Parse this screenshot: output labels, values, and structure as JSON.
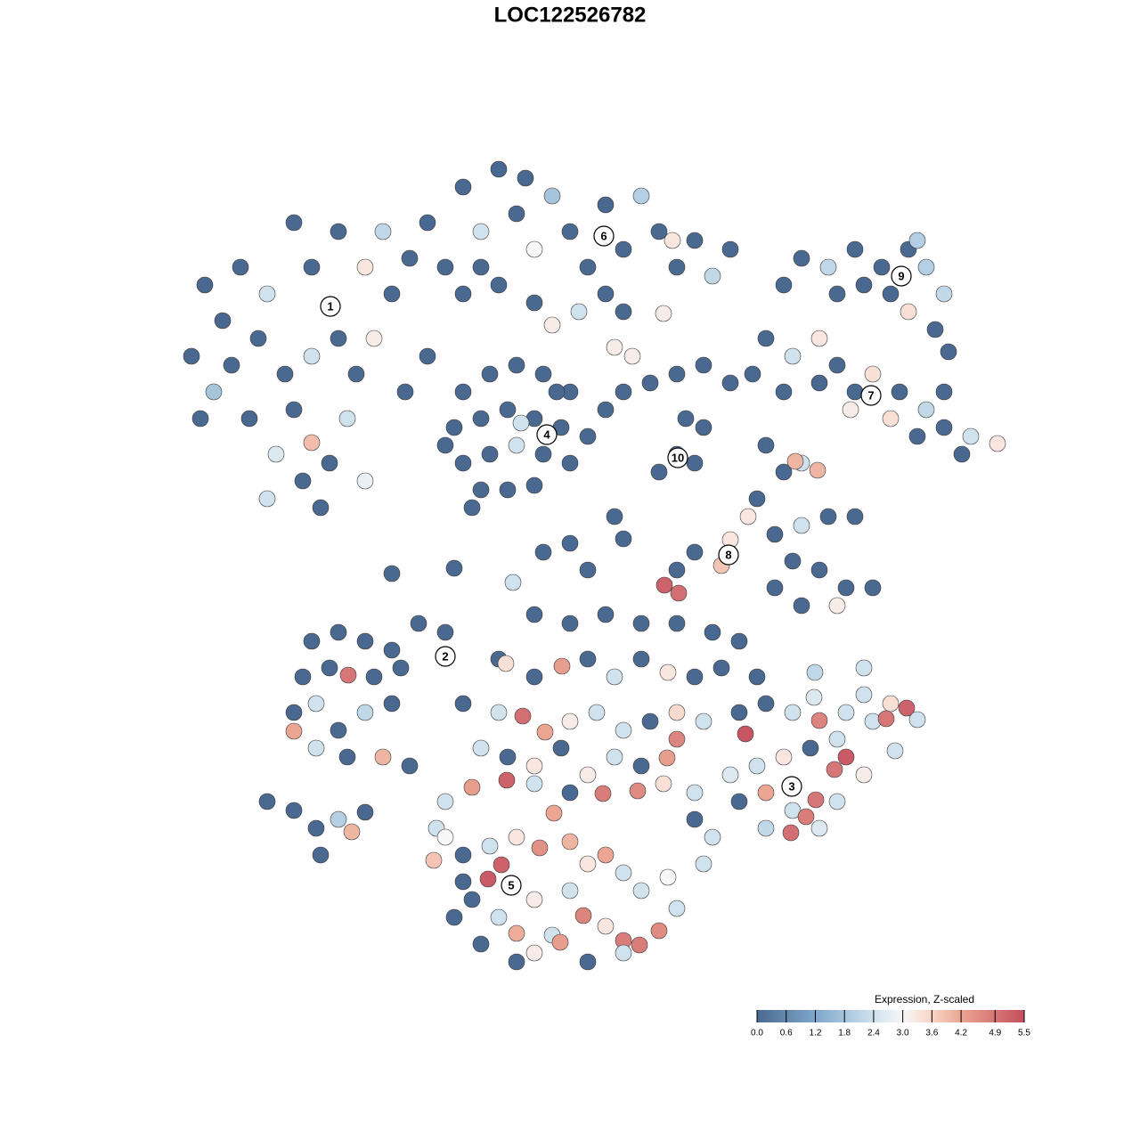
{
  "chart_data": {
    "type": "scatter",
    "title": "LOC122526782",
    "xlim": [
      0,
      1280
    ],
    "ylim": [
      1280,
      0
    ],
    "x": [
      230,
      250,
      215,
      240,
      270,
      300,
      290,
      320,
      280,
      310,
      340,
      360,
      330,
      350,
      380,
      400,
      390,
      410,
      370,
      350,
      380,
      410,
      330,
      260,
      300,
      420,
      350,
      225,
      440,
      460,
      480,
      500,
      520,
      540,
      560,
      580,
      600,
      620,
      640,
      660,
      680,
      700,
      720,
      740,
      760,
      780,
      800,
      820,
      520,
      560,
      600,
      650,
      700,
      745,
      620,
      480,
      455,
      540,
      590,
      755,
      680,
      430,
      520,
      550,
      580,
      610,
      640,
      510,
      540,
      570,
      600,
      630,
      660,
      520,
      550,
      580,
      610,
      640,
      540,
      570,
      600,
      530,
      585,
      625,
      500,
      700,
      730,
      760,
      790,
      820,
      770,
      790,
      760,
      740,
      780,
      690,
      710,
      680,
      880,
      900,
      930,
      960,
      990,
      1020,
      1040,
      1060,
      1000,
      970,
      940,
      1020,
      1050,
      1065,
      1030,
      860,
      890,
      920,
      940,
      960,
      980,
      1010,
      1040,
      1060,
      1090,
      1120,
      1080,
      1030,
      1000,
      920,
      880,
      845,
      955,
      1060,
      860,
      880,
      900,
      893,
      918,
      850,
      840,
      870,
      900,
      930,
      960,
      890,
      920,
      950,
      980,
      900,
      940,
      820,
      810,
      780,
      760,
      746,
      762,
      870,
      440,
      510,
      576,
      610,
      640,
      700,
      690,
      660,
      350,
      380,
      410,
      440,
      470,
      500,
      340,
      370,
      391,
      420,
      450,
      330,
      355,
      380,
      410,
      440,
      330,
      355,
      390,
      430,
      460,
      300,
      330,
      355,
      380,
      395,
      360,
      410,
      600,
      640,
      680,
      720,
      760,
      800,
      830,
      560,
      568,
      600,
      631,
      660,
      690,
      720,
      750,
      780,
      810,
      520,
      560,
      587,
      612,
      640,
      670,
      700,
      730,
      760,
      790,
      540,
      570,
      600,
      630,
      660,
      690,
      720,
      749,
      760,
      530,
      569,
      600,
      640,
      677,
      716,
      745,
      780,
      500,
      490,
      830,
      850,
      860,
      890,
      914,
      920,
      950,
      980,
      1000,
      1018,
      995,
      970,
      940,
      910,
      880,
      850,
      820,
      837,
      830,
      860,
      890,
      905,
      916,
      937,
      950,
      970,
      940,
      920,
      888,
      860,
      800,
      780,
      790,
      1030,
      1005,
      970,
      915,
      500,
      487,
      520,
      550,
      563,
      548,
      580,
      606,
      622,
      640,
      660,
      680,
      700,
      530,
      560,
      580,
      600,
      620,
      629,
      655,
      680,
      700,
      718,
      740,
      760,
      750,
      720,
      640,
      600,
      510,
      540,
      580,
      660,
      700,
      520
    ],
    "y": [
      320,
      360,
      400,
      440,
      300,
      330,
      380,
      420,
      470,
      510,
      540,
      570,
      460,
      400,
      380,
      420,
      470,
      540,
      520,
      300,
      260,
      300,
      250,
      410,
      560,
      380,
      497,
      470,
      330,
      290,
      250,
      300,
      210,
      260,
      190,
      240,
      280,
      220,
      260,
      300,
      230,
      280,
      220,
      260,
      300,
      270,
      310,
      280,
      330,
      320,
      340,
      350,
      350,
      352,
      365,
      400,
      440,
      300,
      200,
      270,
      330,
      260,
      440,
      420,
      410,
      420,
      440,
      480,
      470,
      460,
      470,
      480,
      490,
      520,
      510,
      500,
      510,
      520,
      550,
      550,
      545,
      570,
      475,
      440,
      500,
      440,
      430,
      420,
      410,
      430,
      470,
      480,
      510,
      530,
      520,
      390,
      400,
      460,
      320,
      290,
      300,
      280,
      300,
      280,
      300,
      330,
      330,
      320,
      330,
      350,
      370,
      395,
      270,
      380,
      400,
      380,
      410,
      440,
      420,
      440,
      460,
      480,
      490,
      498,
      510,
      490,
      470,
      430,
      440,
      420,
      460,
      440,
      500,
      530,
      520,
      518,
      528,
      560,
      580,
      600,
      590,
      580,
      580,
      630,
      640,
      660,
      660,
      680,
      680,
      606,
      635,
      620,
      640,
      657,
      666,
      660,
      644,
      638,
      654,
      620,
      610,
      605,
      580,
      640,
      720,
      710,
      720,
      730,
      700,
      710,
      760,
      750,
      758,
      760,
      750,
      800,
      790,
      820,
      800,
      790,
      821,
      840,
      850,
      850,
      860,
      900,
      910,
      930,
      920,
      934,
      960,
      912,
      690,
      700,
      690,
      700,
      700,
      710,
      720,
      740,
      745,
      760,
      748,
      740,
      760,
      740,
      755,
      760,
      750,
      790,
      800,
      804,
      822,
      810,
      800,
      820,
      810,
      800,
      810,
      840,
      850,
      860,
      840,
      870,
      850,
      860,
      851,
      830,
      884,
      876,
      880,
      890,
      891,
      888,
      880,
      890,
      900,
      930,
      800,
      760,
      790,
      800,
      783,
      809,
      800,
      810,
      790,
      795,
      807,
      780,
      830,
      840,
      850,
      860,
      870,
      824,
      900,
      890,
      910,
      917,
      898,
      864,
      850,
      870,
      900,
      930,
      935,
      930,
      940,
      920,
      970,
      808,
      843,
      750,
      755,
      940,
      966,
      960,
      950,
      971,
      987,
      940,
      952,
      913,
      945,
      970,
      960,
      980,
      1010,
      1030,
      1048,
      1070,
      1050,
      1058,
      1028,
      1040,
      1056,
      1061,
      1045,
      1020,
      985,
      1000,
      1000,
      1010,
      1030,
      1060,
      1080,
      1080,
      1070,
      990
    ],
    "values": [
      0,
      0,
      0,
      1.8,
      0,
      2.4,
      0,
      0,
      0,
      2.6,
      0,
      0,
      0,
      2.4,
      0,
      0,
      2.4,
      2.8,
      0,
      0,
      0,
      3.3,
      0,
      0,
      2.4,
      3.2,
      3.9,
      0,
      0,
      0,
      0,
      0,
      0,
      2.4,
      0,
      0,
      3.0,
      1.8,
      0,
      0,
      0,
      0,
      2.0,
      0,
      0,
      0,
      2.2,
      0,
      0,
      0,
      0,
      2.4,
      0,
      3.2,
      3.2,
      0,
      0,
      0,
      0,
      3.3,
      0,
      2.2,
      0,
      0,
      0,
      0,
      0,
      0,
      0,
      0,
      0,
      0,
      0,
      0,
      0,
      2.4,
      0,
      0,
      0,
      0,
      0,
      0,
      2.4,
      0,
      0,
      0,
      0,
      0,
      0,
      0,
      0,
      0,
      0,
      0,
      0,
      3.2,
      3.2,
      0,
      0,
      0,
      2.2,
      0,
      0,
      0,
      2.0,
      2.2,
      0,
      0,
      0,
      3.4,
      0,
      0,
      2.0,
      0,
      2.4,
      3.3,
      0,
      0,
      3.4,
      0,
      2.2,
      0,
      2.4,
      3.3,
      0,
      0,
      3.4,
      0,
      0,
      0,
      3.2,
      0,
      0,
      0,
      2.4,
      4.0,
      4.0,
      0,
      3.3,
      0,
      2.4,
      0,
      0,
      0,
      0,
      0,
      0,
      0,
      3.2,
      3.3,
      3.8,
      0,
      0,
      5.2,
      5.0,
      0,
      0,
      0,
      2.4,
      0,
      0,
      0,
      0,
      0,
      0,
      0,
      0,
      0,
      0,
      0,
      0,
      0,
      4.9,
      0,
      0,
      0,
      2.4,
      0,
      2.2,
      0,
      4.2,
      2.4,
      0,
      4.0,
      0,
      0,
      0,
      0,
      2.0,
      4.0,
      0,
      0,
      0,
      0,
      0,
      0,
      0,
      0,
      0,
      0,
      3.4,
      0,
      4.3,
      0,
      2.4,
      0,
      3.3,
      0,
      0,
      0,
      2.4,
      5.0,
      4.2,
      3.2,
      2.4,
      2.4,
      0,
      3.5,
      2.4,
      2.4,
      0,
      3.3,
      0,
      3.2,
      2.4,
      0,
      4.3,
      4.7,
      4.3,
      5.2,
      2.4,
      0,
      4.8,
      4.6,
      3.4,
      2.4,
      2.4,
      2.4,
      0,
      0,
      0,
      2.4,
      2.6,
      4.7,
      2.4,
      2.4,
      3.4,
      5.2,
      4.9,
      2.4,
      2.4,
      0,
      3.3,
      2.4,
      2.6,
      5.4,
      0,
      4.2,
      2.4,
      4.8,
      4.9,
      4.9,
      5.3,
      3.2,
      2.4,
      2.6,
      5.0,
      2.2,
      2.4,
      0,
      2.4,
      2.4,
      2.4,
      2.4,
      2.2,
      3.0,
      3.8,
      0,
      2.4,
      5.2,
      5.3,
      3.3,
      4.5,
      4.2,
      4.0,
      3.3,
      4.2,
      2.4,
      0,
      2.4,
      4.1,
      3.2,
      2.4,
      4.3,
      4.7,
      3.3,
      4.8,
      4.8,
      4.6,
      2.4,
      3.0,
      2.4,
      2.4,
      3.2,
      0,
      0,
      0,
      0,
      2.4,
      0
    ],
    "clusters": [
      {
        "label": "1",
        "x": 371,
        "y": 344
      },
      {
        "label": "2",
        "x": 500,
        "y": 737
      },
      {
        "label": "3",
        "x": 889,
        "y": 883
      },
      {
        "label": "4",
        "x": 614,
        "y": 488
      },
      {
        "label": "5",
        "x": 574,
        "y": 994
      },
      {
        "label": "6",
        "x": 678,
        "y": 265
      },
      {
        "label": "7",
        "x": 978,
        "y": 444
      },
      {
        "label": "8",
        "x": 818,
        "y": 623
      },
      {
        "label": "9",
        "x": 1012,
        "y": 310
      },
      {
        "label": "10",
        "x": 761,
        "y": 514
      }
    ],
    "colorbar": {
      "title": "Expression, Z-scaled",
      "lim": [
        0,
        5.5
      ],
      "ticks": [
        {
          "value": 0,
          "label": "0.0"
        },
        0.6,
        1.2,
        1.8,
        2.4,
        {
          "value": 3,
          "label": "3.0"
        },
        3.6,
        4.2,
        4.9,
        5.5
      ],
      "colorscale": [
        [
          0,
          "#4a6990"
        ],
        [
          1.2,
          "#7da7cc"
        ],
        [
          2.4,
          "#cfe2ee"
        ],
        [
          3,
          "#f7f7f7"
        ],
        [
          3.6,
          "#f8d5c6"
        ],
        [
          4.2,
          "#eba592"
        ],
        [
          5.5,
          "#c44e5e"
        ]
      ]
    }
  }
}
